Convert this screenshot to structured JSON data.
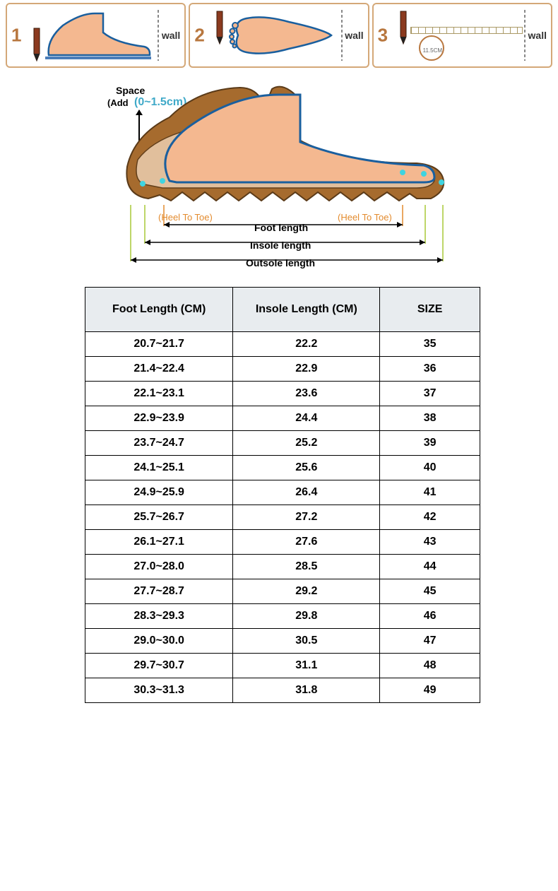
{
  "colors": {
    "step_border": "#d4a878",
    "step_num": "#b8773f",
    "wall_text": "#333333",
    "foot_fill": "#f4b890",
    "foot_outline": "#1a5f9e",
    "shoe_fill": "#a66b2e",
    "shoe_outline": "#5a3a18",
    "pencil_body": "#8b3a1f",
    "pencil_tip": "#222222",
    "heel_toe_text": "#e38b2e",
    "green_text": "#a9c837",
    "add_range_text": "#3fa9c8",
    "table_header_bg": "#e8ecef",
    "table_border": "#000000",
    "table_text": "#000000"
  },
  "steps": [
    {
      "num": "1",
      "wall": "wall"
    },
    {
      "num": "2",
      "wall": "wall"
    },
    {
      "num": "3",
      "wall": "wall"
    }
  ],
  "diagram": {
    "space_label": "Space",
    "add_label": "(Add",
    "add_range": "(0~1.5cm)",
    "heel_toe_left": "(Heel To Toe)",
    "heel_toe_right": "(Heel To Toe)",
    "foot_length": "Foot length",
    "insole_length": "Insole length",
    "outsole_length": "Outsole length",
    "step3_circle": "11.5CM"
  },
  "table": {
    "columns": [
      {
        "key": "foot",
        "label": "Foot Length (CM)"
      },
      {
        "key": "insole",
        "label": "Insole Length (CM)"
      },
      {
        "key": "size",
        "label": "SIZE"
      }
    ],
    "rows": [
      {
        "foot": "20.7~21.7",
        "insole": "22.2",
        "size": "35"
      },
      {
        "foot": "21.4~22.4",
        "insole": "22.9",
        "size": "36"
      },
      {
        "foot": "22.1~23.1",
        "insole": "23.6",
        "size": "37"
      },
      {
        "foot": "22.9~23.9",
        "insole": "24.4",
        "size": "38"
      },
      {
        "foot": "23.7~24.7",
        "insole": "25.2",
        "size": "39"
      },
      {
        "foot": "24.1~25.1",
        "insole": "25.6",
        "size": "40"
      },
      {
        "foot": "24.9~25.9",
        "insole": "26.4",
        "size": "41"
      },
      {
        "foot": "25.7~26.7",
        "insole": "27.2",
        "size": "42"
      },
      {
        "foot": "26.1~27.1",
        "insole": "27.6",
        "size": "43"
      },
      {
        "foot": "27.0~28.0",
        "insole": "28.5",
        "size": "44"
      },
      {
        "foot": "27.7~28.7",
        "insole": "29.2",
        "size": "45"
      },
      {
        "foot": "28.3~29.3",
        "insole": "29.8",
        "size": "46"
      },
      {
        "foot": "29.0~30.0",
        "insole": "30.5",
        "size": "47"
      },
      {
        "foot": "29.7~30.7",
        "insole": "31.1",
        "size": "48"
      },
      {
        "foot": "30.3~31.3",
        "insole": "31.8",
        "size": "49"
      }
    ]
  }
}
